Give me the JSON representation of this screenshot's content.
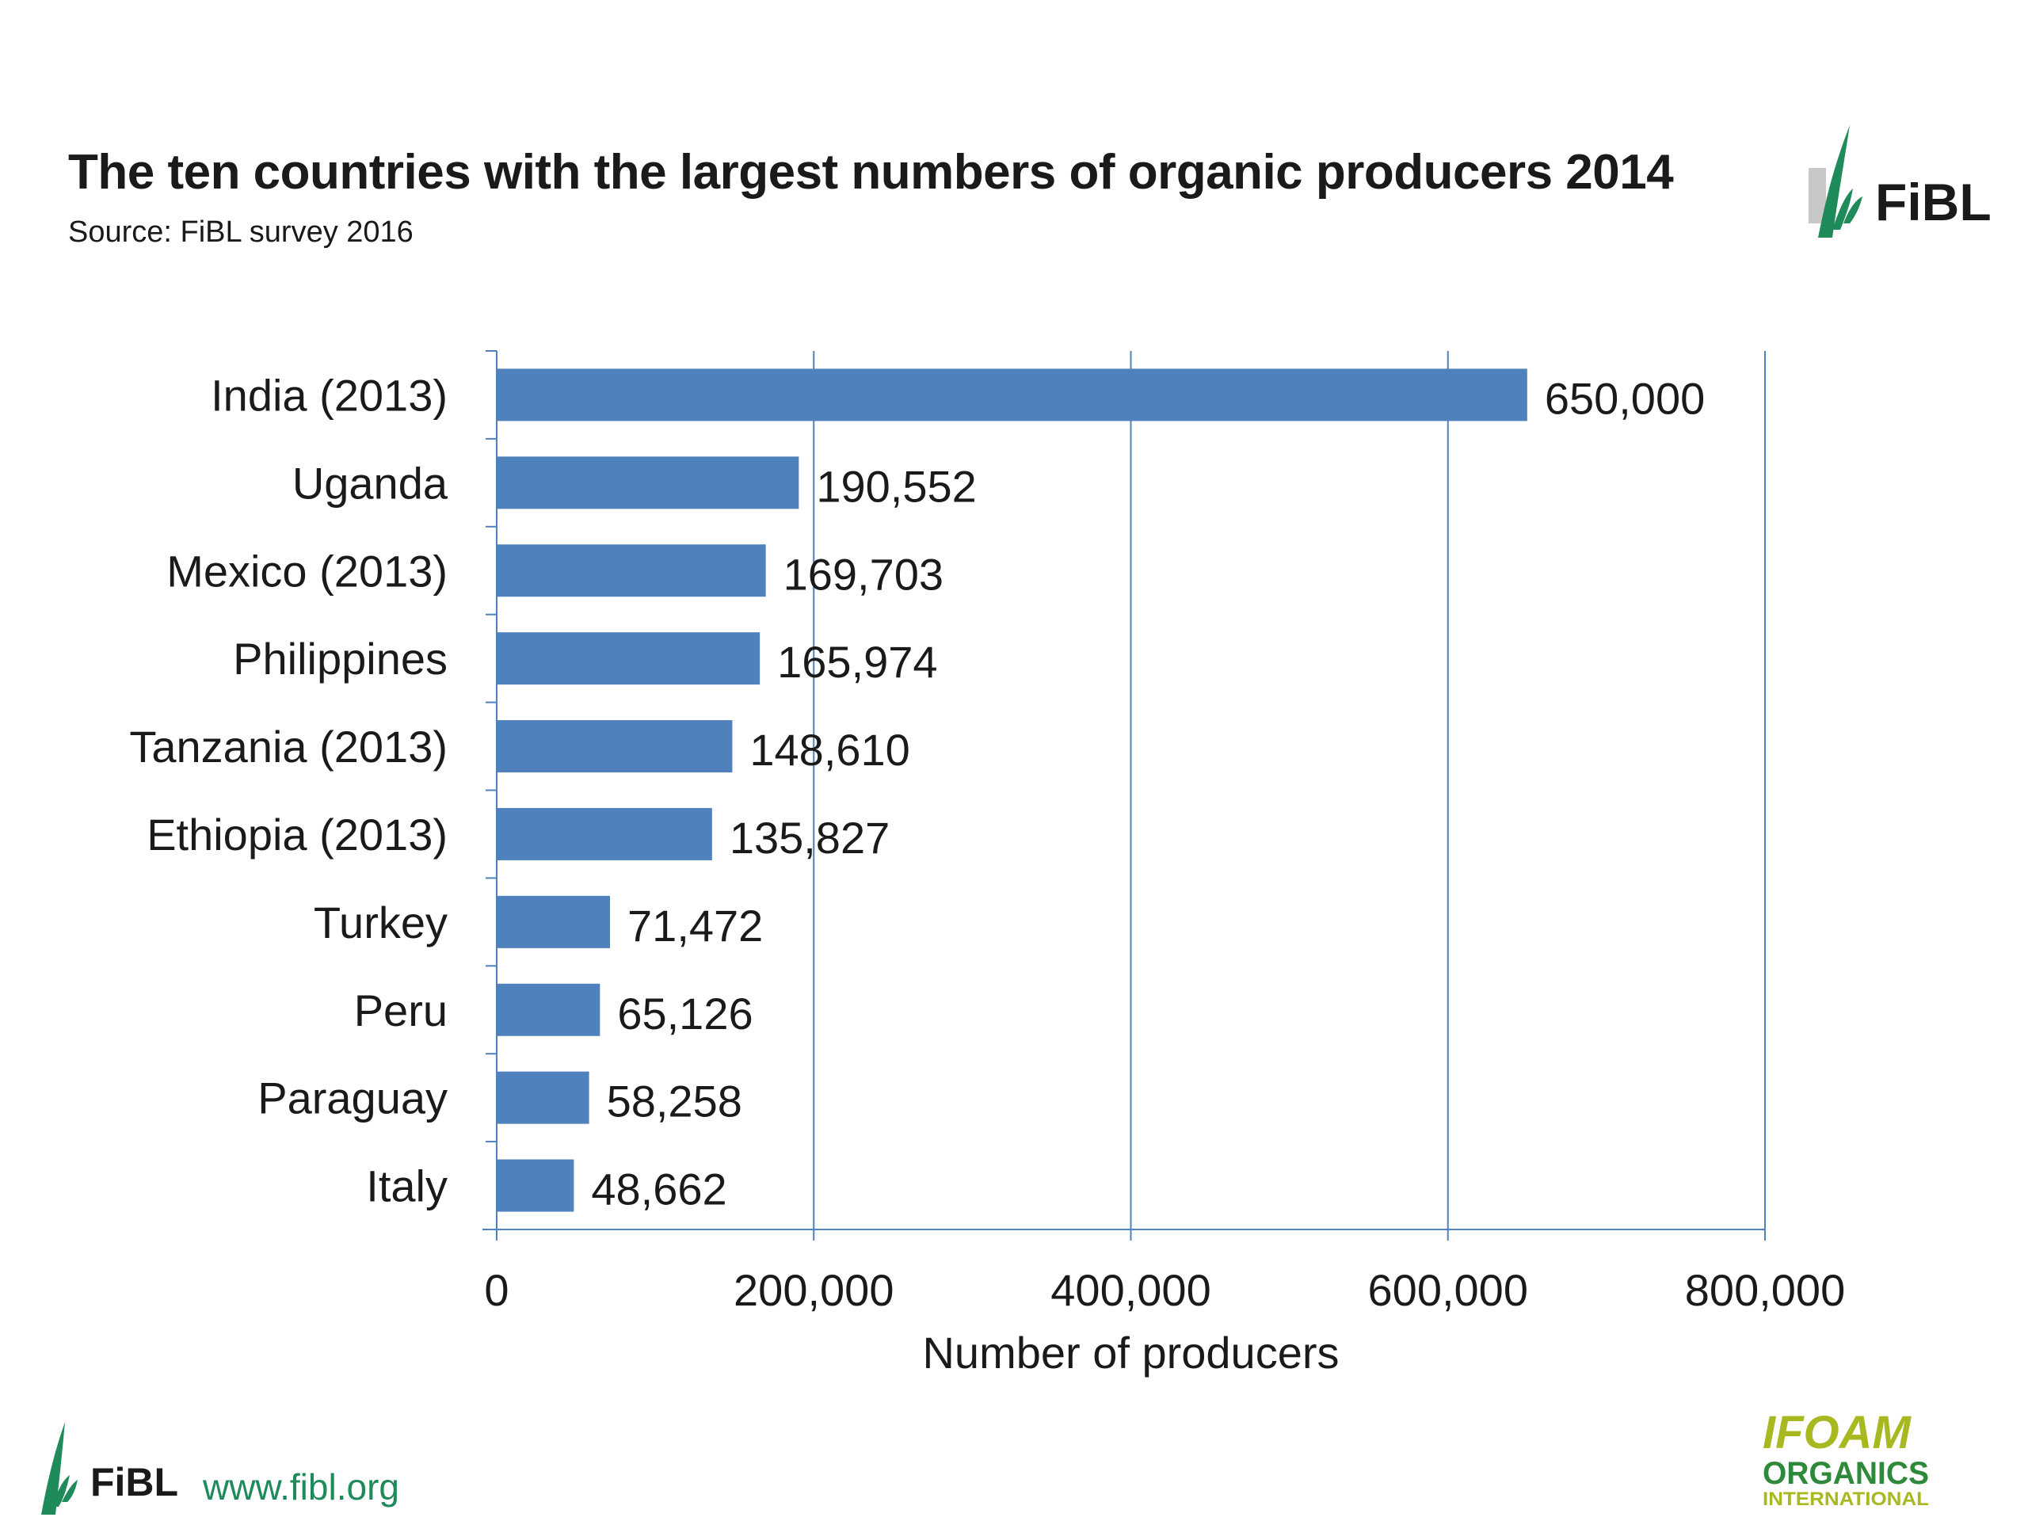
{
  "header": {
    "title": "The ten countries with the largest numbers of organic producers 2014",
    "subtitle": "Source: FiBL survey 2016"
  },
  "footer": {
    "website": "www.fibl.org",
    "logo_fibl_text": "FiBL",
    "logo_ifoam_line1": "IFOAM",
    "logo_ifoam_line2": "ORGANICS",
    "logo_ifoam_line3": "INTERNATIONAL"
  },
  "colors": {
    "bar": "#4F81BD",
    "grid": "#4F81BD",
    "fibl_green": "#1f8a5a",
    "ifoam_yellow": "#a8b820",
    "ifoam_green": "#2e8a3a",
    "text": "#1a1a1a"
  },
  "chart_data": {
    "type": "bar",
    "orientation": "horizontal",
    "categories": [
      "India (2013)",
      "Uganda",
      "Mexico (2013)",
      "Philippines",
      "Tanzania (2013)",
      "Ethiopia (2013)",
      "Turkey",
      "Peru",
      "Paraguay",
      "Italy"
    ],
    "values": [
      650000,
      190552,
      169703,
      165974,
      148610,
      135827,
      71472,
      65126,
      58258,
      48662
    ],
    "value_labels": [
      "650,000",
      "190,552",
      "169,703",
      "165,974",
      "148,610",
      "135,827",
      "71,472",
      "65,126",
      "58,258",
      "48,662"
    ],
    "xlabel": "Number of producers",
    "ylabel": "",
    "xlim": [
      0,
      800000
    ],
    "ticks": [
      0,
      200000,
      400000,
      600000,
      800000
    ],
    "tick_labels": [
      "0",
      "200,000",
      "400,000",
      "600,000",
      "800,000"
    ],
    "grid": true
  }
}
